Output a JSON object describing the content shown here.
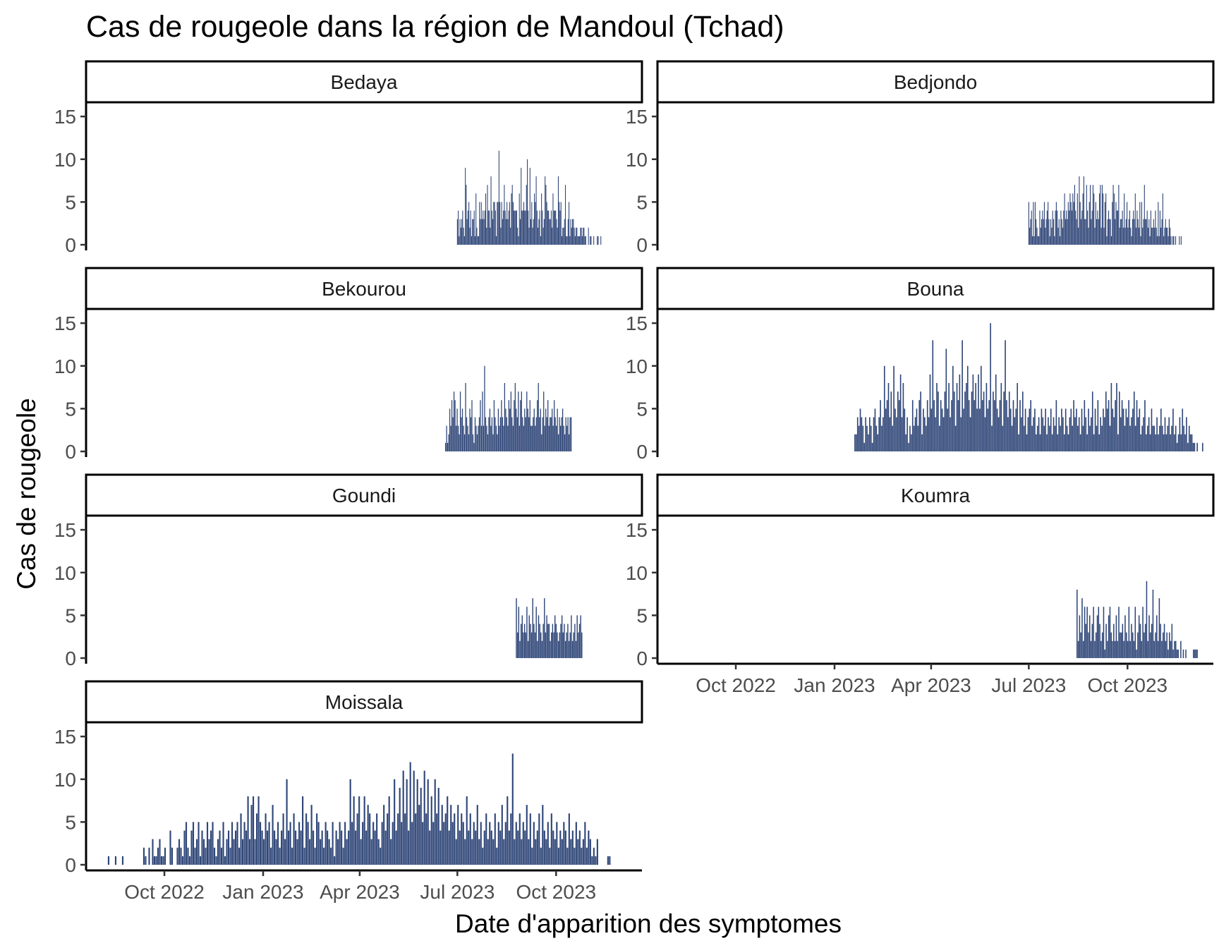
{
  "chart_data": {
    "type": "bar",
    "title": "Cas de rougeole dans la région de Mandoul (Tchad)",
    "xlabel": "Date d'apparition des symptomes",
    "ylabel": "Cas de rougeole",
    "x_range": [
      "2022-07-20",
      "2023-12-20"
    ],
    "ylim": [
      0,
      16
    ],
    "y_ticks": [
      0,
      5,
      10,
      15
    ],
    "x_ticks": [
      {
        "date": "2022-10-01",
        "label": "Oct 2022"
      },
      {
        "date": "2023-01-01",
        "label": "Jan 2023"
      },
      {
        "date": "2023-04-01",
        "label": "Apr 2023"
      },
      {
        "date": "2023-07-01",
        "label": "Jul 2023"
      },
      {
        "date": "2023-10-01",
        "label": "Oct 2023"
      }
    ],
    "bar_color": "#2e4577",
    "grid": false,
    "layout": "facets, 2 columns, free x axis per column bottom",
    "facets": [
      {
        "name": "Bedaya",
        "start": "2023-07-01",
        "end": "2023-11-15",
        "values": [
          3,
          4,
          1,
          3,
          2,
          3,
          4,
          2,
          1,
          9,
          7,
          3,
          4,
          5,
          2,
          4,
          1,
          3,
          3,
          4,
          1,
          6,
          2,
          1,
          1,
          5,
          3,
          5,
          3,
          4,
          3,
          4,
          6,
          2,
          7,
          4,
          4,
          2,
          8,
          4,
          3,
          5,
          5,
          4,
          1,
          5,
          5,
          11,
          5,
          2,
          5,
          3,
          4,
          7,
          4,
          3,
          5,
          3,
          4,
          5,
          2,
          6,
          7,
          5,
          4,
          4,
          4,
          4,
          2,
          1,
          6,
          3,
          9,
          4,
          4,
          5,
          4,
          4,
          7,
          10,
          4,
          2,
          9,
          3,
          5,
          2,
          3,
          6,
          5,
          8,
          4,
          2,
          3,
          4,
          1,
          6,
          4,
          2,
          3,
          8,
          7,
          5,
          4,
          4,
          3,
          3,
          4,
          2,
          6,
          4,
          4,
          4,
          3,
          2,
          8,
          5,
          4,
          5,
          1,
          2,
          2,
          3,
          7,
          1,
          1,
          3,
          5,
          1,
          3,
          2,
          3,
          3,
          2,
          1,
          2,
          2,
          1,
          1,
          1,
          2,
          2,
          1,
          2,
          2,
          1,
          1,
          0,
          0,
          2,
          0,
          1,
          1,
          0,
          0,
          1,
          0,
          0,
          0,
          1,
          1,
          0,
          0,
          1,
          0,
          0,
          0,
          0
        ]
      },
      {
        "name": "Bedjondo",
        "start": "2023-07-01",
        "end": "2023-11-20",
        "values": [
          5,
          2,
          3,
          4,
          1,
          5,
          1,
          5,
          3,
          2,
          1,
          1,
          4,
          2,
          3,
          4,
          3,
          5,
          2,
          3,
          4,
          5,
          3,
          1,
          3,
          2,
          4,
          3,
          1,
          4,
          5,
          4,
          2,
          3,
          1,
          4,
          3,
          2,
          4,
          6,
          3,
          4,
          3,
          5,
          4,
          6,
          5,
          4,
          6,
          5,
          7,
          4,
          3,
          6,
          2,
          8,
          5,
          3,
          4,
          6,
          8,
          3,
          3,
          7,
          4,
          2,
          5,
          7,
          3,
          4,
          7,
          6,
          2,
          5,
          3,
          4,
          3,
          6,
          7,
          2,
          7,
          6,
          2,
          5,
          6,
          1,
          3,
          4,
          3,
          3,
          1,
          5,
          7,
          6,
          3,
          5,
          4,
          4,
          7,
          2,
          3,
          3,
          4,
          2,
          6,
          2,
          3,
          5,
          2,
          3,
          4,
          2,
          1,
          3,
          4,
          3,
          6,
          2,
          4,
          3,
          2,
          5,
          1,
          5,
          2,
          3,
          7,
          3,
          3,
          4,
          2,
          3,
          1,
          4,
          2,
          2,
          3,
          2,
          4,
          2,
          1,
          5,
          1,
          4,
          2,
          3,
          6,
          1,
          2,
          3,
          2,
          2,
          1,
          3,
          2,
          1,
          0,
          1,
          1,
          0,
          1,
          0,
          0,
          0,
          1,
          0,
          1
        ]
      },
      {
        "name": "Bekourou",
        "start": "2023-06-20",
        "end": "2023-10-15",
        "values": [
          1,
          3,
          1,
          2,
          5,
          3,
          6,
          4,
          7,
          6,
          3,
          5,
          3,
          2,
          7,
          4,
          5,
          3,
          2,
          8,
          4,
          3,
          2,
          5,
          4,
          6,
          2,
          1,
          4,
          3,
          2,
          3,
          4,
          6,
          3,
          7,
          3,
          10,
          4,
          3,
          2,
          4,
          5,
          3,
          4,
          2,
          6,
          4,
          3,
          2,
          5,
          3,
          4,
          6,
          4,
          3,
          8,
          5,
          4,
          3,
          6,
          5,
          7,
          4,
          3,
          6,
          8,
          5,
          4,
          7,
          3,
          6,
          7,
          4,
          3,
          5,
          4,
          7,
          5,
          4,
          6,
          3,
          3,
          4,
          5,
          3,
          4,
          6,
          8,
          4,
          5,
          2,
          4,
          7,
          3,
          5,
          4,
          6,
          3,
          4,
          4,
          5,
          3,
          6,
          4,
          3,
          5,
          2,
          4,
          3,
          4,
          5,
          3,
          2,
          4,
          3,
          4,
          2,
          4,
          4
        ]
      },
      {
        "name": "Bouna",
        "start": "2023-01-20",
        "end": "2023-12-10",
        "values": [
          2,
          2,
          4,
          3,
          5,
          4,
          3,
          1,
          4,
          3,
          2,
          4,
          3,
          1,
          4,
          5,
          3,
          2,
          4,
          6,
          3,
          4,
          10,
          5,
          6,
          8,
          4,
          7,
          3,
          10,
          5,
          4,
          7,
          6,
          9,
          4,
          8,
          5,
          2,
          4,
          1,
          3,
          2,
          6,
          3,
          4,
          5,
          3,
          6,
          7,
          2,
          5,
          4,
          3,
          6,
          4,
          9,
          5,
          13,
          6,
          4,
          8,
          7,
          3,
          6,
          5,
          4,
          7,
          12,
          5,
          8,
          4,
          6,
          10,
          7,
          3,
          8,
          6,
          9,
          4,
          13,
          5,
          7,
          8,
          10,
          6,
          4,
          7,
          9,
          6,
          8,
          5,
          9,
          5,
          10,
          6,
          7,
          4,
          8,
          5,
          6,
          15,
          3,
          7,
          6,
          9,
          5,
          4,
          6,
          8,
          3,
          7,
          13,
          6,
          4,
          7,
          5,
          3,
          6,
          4,
          5,
          8,
          2,
          6,
          4,
          7,
          3,
          5,
          2,
          4,
          5,
          6,
          3,
          4,
          5,
          2,
          3,
          4,
          2,
          5,
          4,
          3,
          5,
          2,
          4,
          3,
          5,
          2,
          4,
          3,
          6,
          2,
          4,
          3,
          5,
          4,
          2,
          5,
          3,
          2,
          4,
          5,
          3,
          6,
          4,
          5,
          3,
          4,
          2,
          5,
          3,
          6,
          4,
          2,
          5,
          3,
          4,
          7,
          2,
          5,
          3,
          6,
          2,
          4,
          3,
          5,
          4,
          7,
          5,
          6,
          3,
          8,
          5,
          4,
          6,
          8,
          2,
          7,
          4,
          6,
          5,
          3,
          5,
          4,
          6,
          3,
          4,
          5,
          7,
          3,
          6,
          4,
          5,
          2,
          3,
          4,
          6,
          2,
          3,
          4,
          2,
          5,
          3,
          3,
          2,
          4,
          2,
          3,
          5,
          3,
          2,
          4,
          2,
          3,
          4,
          2,
          3,
          5,
          2,
          3,
          1,
          2,
          4,
          2,
          5,
          3,
          2,
          4,
          1,
          3,
          2,
          2,
          1,
          1,
          0,
          1,
          0,
          0,
          0,
          1
        ]
      },
      {
        "name": "Goundi",
        "start": "2023-08-25",
        "end": "2023-10-25",
        "values": [
          7,
          3,
          6,
          2,
          4,
          5,
          3,
          4,
          3,
          6,
          2,
          5,
          4,
          3,
          7,
          4,
          3,
          6,
          2,
          5,
          4,
          3,
          2,
          4,
          7,
          3,
          5,
          4,
          4,
          2,
          3,
          4,
          3,
          5,
          4,
          3,
          2,
          3,
          4,
          5,
          3,
          4,
          2,
          3,
          4,
          2,
          3,
          5,
          2,
          3,
          4,
          2,
          5,
          3,
          4,
          5,
          3
        ]
      },
      {
        "name": "Koumra",
        "start": "2023-08-15",
        "end": "2023-12-05",
        "values": [
          8,
          2,
          5,
          3,
          7,
          2,
          6,
          4,
          6,
          3,
          5,
          2,
          4,
          6,
          2,
          3,
          5,
          6,
          4,
          2,
          3,
          6,
          1,
          4,
          2,
          5,
          6,
          3,
          2,
          4,
          2,
          5,
          2,
          6,
          3,
          3,
          4,
          2,
          5,
          3,
          2,
          6,
          2,
          4,
          3,
          2,
          6,
          1,
          3,
          5,
          4,
          2,
          6,
          3,
          4,
          9,
          2,
          5,
          3,
          4,
          8,
          2,
          3,
          5,
          2,
          7,
          4,
          2,
          3,
          4,
          2,
          3,
          1,
          3,
          2,
          4,
          1,
          2,
          2,
          1,
          1,
          0,
          2,
          0,
          1,
          0,
          1,
          0,
          0,
          0,
          0,
          0,
          1,
          1,
          1,
          1
        ]
      },
      {
        "name": "Moissala",
        "start": "2022-08-10",
        "end": "2023-11-20",
        "values": [
          1,
          0,
          0,
          0,
          1,
          0,
          0,
          0,
          1,
          0,
          0,
          0,
          0,
          0,
          0,
          0,
          0,
          0,
          0,
          0,
          2,
          1,
          0,
          2,
          0,
          3,
          1,
          1,
          2,
          3,
          1,
          1,
          2,
          0,
          0,
          4,
          2,
          0,
          0,
          2,
          3,
          2,
          1,
          4,
          5,
          2,
          1,
          4,
          5,
          2,
          3,
          5,
          1,
          4,
          3,
          2,
          5,
          3,
          4,
          5,
          2,
          1,
          3,
          4,
          2,
          5,
          1,
          3,
          4,
          2,
          5,
          3,
          4,
          5,
          2,
          6,
          3,
          5,
          4,
          8,
          3,
          7,
          8,
          3,
          6,
          8,
          5,
          4,
          3,
          6,
          4,
          5,
          2,
          7,
          4,
          3,
          5,
          2,
          4,
          6,
          3,
          10,
          4,
          5,
          2,
          6,
          4,
          3,
          5,
          4,
          8,
          2,
          6,
          5,
          3,
          7,
          4,
          2,
          6,
          5,
          3,
          4,
          2,
          5,
          4,
          3,
          2,
          5,
          1,
          4,
          3,
          5,
          4,
          2,
          5,
          3,
          4,
          10,
          5,
          8,
          4,
          6,
          8,
          3,
          5,
          8,
          4,
          7,
          6,
          3,
          5,
          4,
          6,
          3,
          2,
          5,
          7,
          4,
          6,
          8,
          3,
          5,
          10,
          4,
          6,
          9,
          5,
          11,
          6,
          10,
          4,
          12,
          5,
          11,
          6,
          10,
          7,
          9,
          5,
          11,
          6,
          10,
          4,
          8,
          5,
          10,
          6,
          9,
          4,
          7,
          5,
          6,
          8,
          4,
          7,
          5,
          6,
          3,
          7,
          4,
          6,
          5,
          3,
          8,
          4,
          6,
          3,
          5,
          4,
          7,
          3,
          5,
          2,
          4,
          6,
          3,
          5,
          4,
          3,
          6,
          2,
          5,
          4,
          7,
          3,
          5,
          8,
          4,
          6,
          13,
          3,
          5,
          4,
          6,
          3,
          5,
          4,
          7,
          3,
          6,
          2,
          5,
          3,
          4,
          6,
          2,
          7,
          4,
          3,
          5,
          2,
          6,
          4,
          3,
          5,
          2,
          4,
          3,
          5,
          4,
          2,
          6,
          3,
          4,
          2,
          5,
          3,
          4,
          2,
          3,
          5,
          2,
          4,
          3,
          1,
          2,
          1,
          3,
          0,
          0,
          0,
          0,
          0,
          1,
          1
        ]
      }
    ]
  }
}
